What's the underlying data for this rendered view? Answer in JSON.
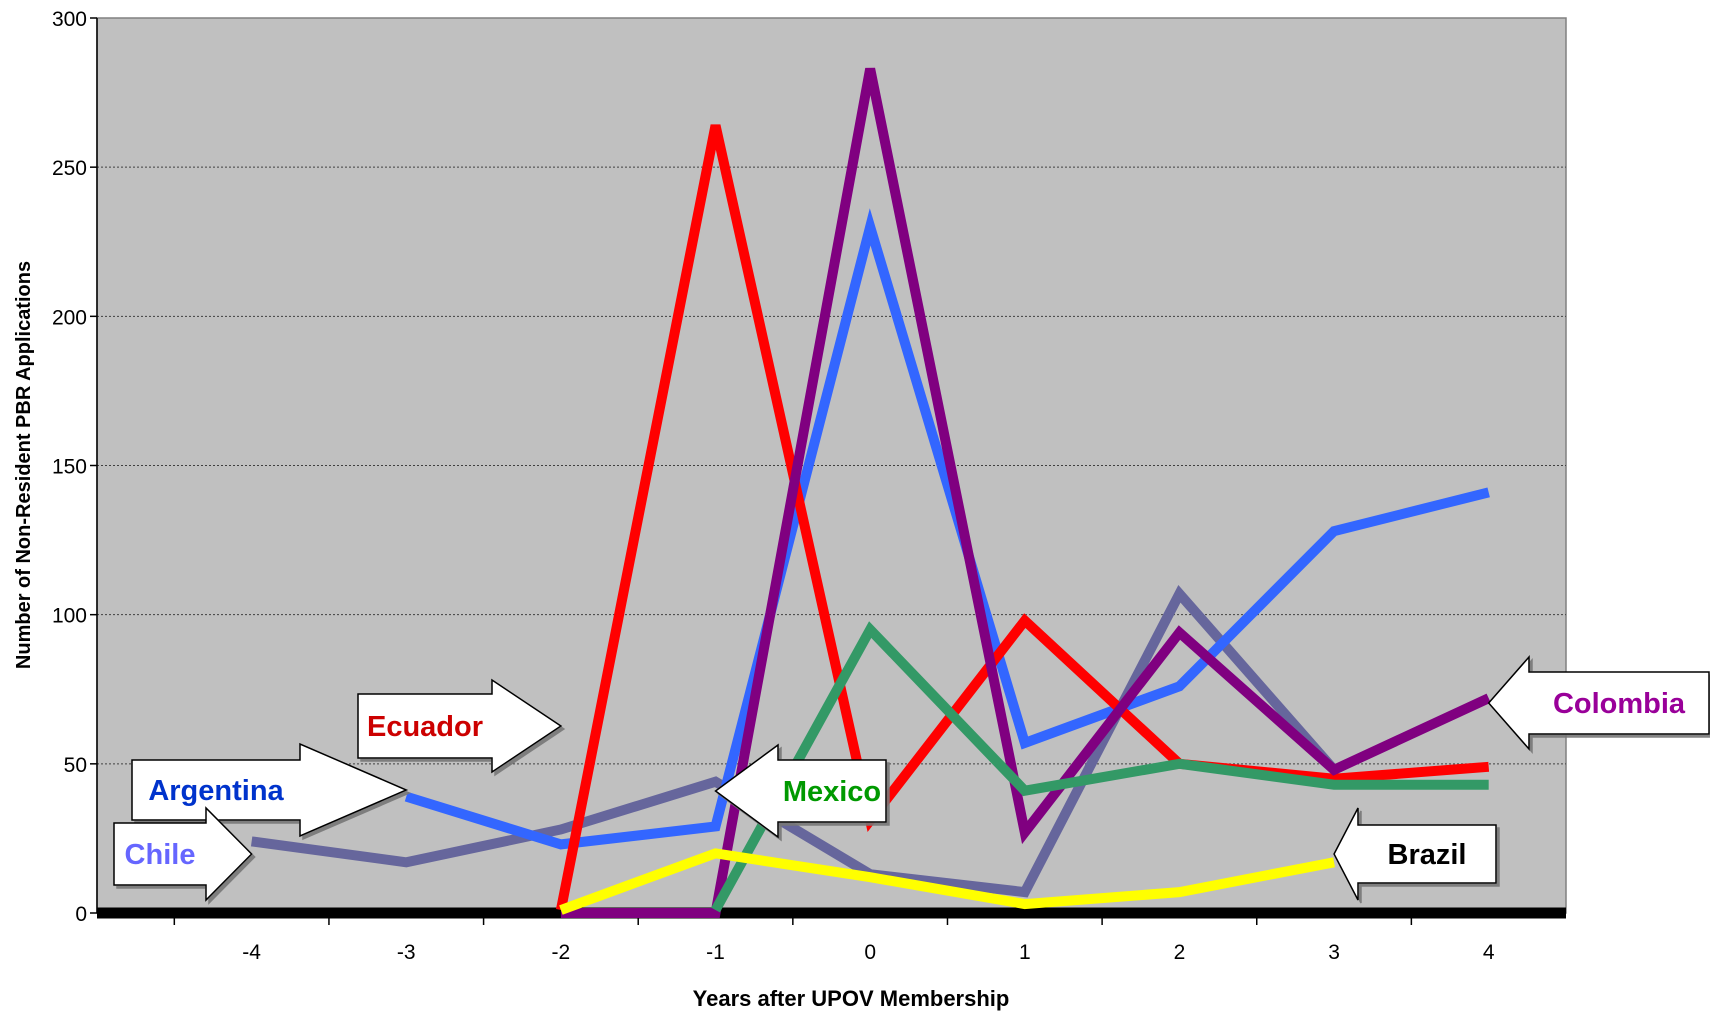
{
  "chart_data": {
    "type": "line",
    "title": "",
    "xlabel": "Years after UPOV Membership",
    "ylabel": "Number of Non-Resident PBR Applications",
    "x": [
      -4,
      -3,
      -2,
      -1,
      0,
      1,
      2,
      3,
      4
    ],
    "xlim": [
      -5,
      4.5
    ],
    "ylim": [
      0,
      300
    ],
    "yticks": [
      0,
      50,
      100,
      150,
      200,
      250,
      300
    ],
    "grid": true,
    "legend": "callout arrows",
    "series": [
      {
        "name": "Chile",
        "color": "#66669c",
        "label_color": "#6666ff",
        "values": [
          24,
          17,
          28,
          44,
          13,
          7,
          107,
          48,
          null
        ]
      },
      {
        "name": "Argentina",
        "color": "#3366ff",
        "label_color": "#0033cc",
        "values": [
          null,
          39,
          23,
          29,
          230,
          57,
          76,
          128,
          141
        ]
      },
      {
        "name": "Ecuador",
        "color": "#ff0000",
        "label_color": "#cc0000",
        "values": [
          null,
          null,
          1,
          264,
          31,
          98,
          50,
          45,
          49
        ]
      },
      {
        "name": "Colombia",
        "color": "#800080",
        "label_color": "#990099",
        "values": [
          null,
          null,
          0,
          0,
          283,
          27,
          94,
          48,
          72
        ]
      },
      {
        "name": "Mexico",
        "color": "#339966",
        "label_color": "#009900",
        "values": [
          null,
          null,
          null,
          1,
          95,
          41,
          50,
          43,
          43
        ]
      },
      {
        "name": "Brazil",
        "color": "#ffff00",
        "label_color": "#000000",
        "values": [
          null,
          null,
          1,
          20,
          12,
          3,
          7,
          17,
          null
        ]
      }
    ]
  }
}
